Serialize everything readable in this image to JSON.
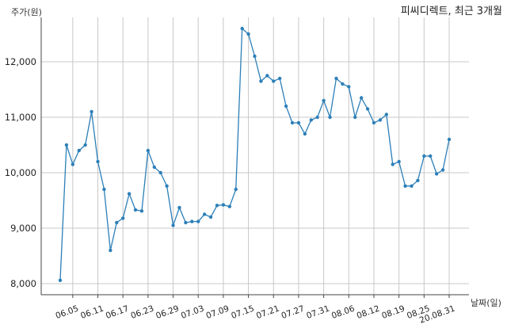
{
  "chart_data": {
    "type": "line",
    "title": "피씨디렉트, 최근 3개월",
    "ylabel": "주가(원)",
    "xlabel": "날짜(일)",
    "ylim": [
      7800,
      12800
    ],
    "yticks": [
      8000,
      9000,
      10000,
      11000,
      12000
    ],
    "ytick_labels": [
      "8,000",
      "9,000",
      "10,000",
      "11,000",
      "12,000"
    ],
    "xtick_labels": [
      "06.05",
      "06.11",
      "06.17",
      "06.23",
      "06.29",
      "07.03",
      "07.09",
      "07.15",
      "07.21",
      "07.27",
      "07.31",
      "08.06",
      "08.12",
      "08.19",
      "08.25",
      "20.08.31"
    ],
    "xtick_index": [
      2,
      6,
      10,
      14,
      18,
      22,
      26,
      30,
      34,
      38,
      42,
      46,
      50,
      54,
      58,
      62
    ],
    "grid": true,
    "series": [
      {
        "color": "#2c7fb8",
        "values": [
          8060,
          10500,
          10150,
          10400,
          10500,
          11100,
          10200,
          9700,
          8600,
          9100,
          9180,
          9620,
          9330,
          9310,
          10400,
          10100,
          10000,
          9760,
          9050,
          9370,
          9100,
          9120,
          9120,
          9250,
          9200,
          9410,
          9420,
          9390,
          9700,
          12600,
          12500,
          12100,
          11650,
          11750,
          11650,
          11700,
          11200,
          10900,
          10900,
          10700,
          10950,
          11000,
          11300,
          11000,
          11700,
          11600,
          11550,
          11000,
          11350,
          11150,
          10900,
          10950,
          11050,
          10150,
          10200,
          9760,
          9760,
          9860,
          10300,
          10300,
          9980,
          10050,
          10600
        ]
      }
    ]
  }
}
